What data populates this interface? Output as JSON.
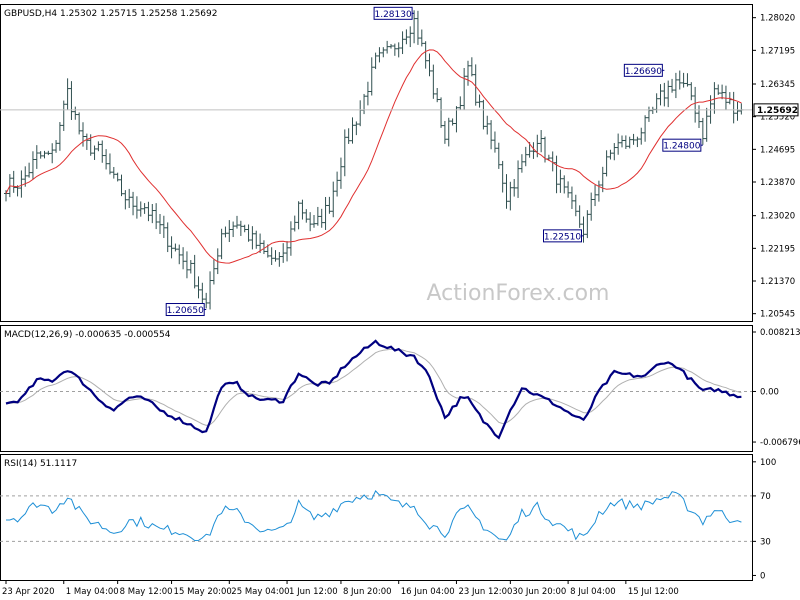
{
  "chart_data": [
    {
      "type": "bar",
      "panel": "price",
      "header": "GBPUSD,H4  1.25302 1.25715 1.25258 1.25692",
      "watermark": "ActionForex.com",
      "ylim": [
        1.2036,
        1.2834
      ],
      "yticks": [
        "1.28020",
        "1.27195",
        "1.26345",
        "1.25520",
        "1.24695",
        "1.23870",
        "1.23020",
        "1.22195",
        "1.21370",
        "1.20545"
      ],
      "yticks_values": [
        1.2802,
        1.27195,
        1.26345,
        1.2552,
        1.24695,
        1.2387,
        1.2302,
        1.22195,
        1.2137,
        1.20545
      ],
      "current_price": "1.25692",
      "current_price_value": 1.25692,
      "annotations": [
        {
          "text": "1.28130",
          "value": 1.2813,
          "bar": 106,
          "side": "left"
        },
        {
          "text": "1.26690",
          "value": 1.2669,
          "bar": 171,
          "side": "left"
        },
        {
          "text": "1.24800",
          "value": 1.248,
          "bar": 181,
          "side": "left"
        },
        {
          "text": "1.22510",
          "value": 1.2251,
          "bar": 150,
          "side": "left"
        },
        {
          "text": "1.20650",
          "value": 1.2065,
          "bar": 52,
          "side": "left"
        }
      ],
      "ma_color": "#e03030",
      "bar_color": "#2f4f4f",
      "anchors": [
        [
          0,
          1.2378
        ],
        [
          4,
          1.2385
        ],
        [
          8,
          1.245
        ],
        [
          12,
          1.2455
        ],
        [
          16,
          1.2615
        ],
        [
          20,
          1.2485
        ],
        [
          24,
          1.2465
        ],
        [
          28,
          1.239
        ],
        [
          32,
          1.2335
        ],
        [
          36,
          1.2325
        ],
        [
          40,
          1.227
        ],
        [
          44,
          1.2215
        ],
        [
          48,
          1.2165
        ],
        [
          52,
          1.2075
        ],
        [
          56,
          1.226
        ],
        [
          60,
          1.2285
        ],
        [
          64,
          1.224
        ],
        [
          68,
          1.2195
        ],
        [
          72,
          1.219
        ],
        [
          76,
          1.233
        ],
        [
          80,
          1.227
        ],
        [
          84,
          1.233
        ],
        [
          88,
          1.248
        ],
        [
          92,
          1.257
        ],
        [
          96,
          1.269
        ],
        [
          100,
          1.272
        ],
        [
          104,
          1.277
        ],
        [
          106,
          1.2795
        ],
        [
          110,
          1.266
        ],
        [
          114,
          1.25
        ],
        [
          118,
          1.26
        ],
        [
          120,
          1.2675
        ],
        [
          124,
          1.254
        ],
        [
          128,
          1.244
        ],
        [
          130,
          1.235
        ],
        [
          134,
          1.243
        ],
        [
          138,
          1.25
        ],
        [
          142,
          1.242
        ],
        [
          146,
          1.234
        ],
        [
          150,
          1.2265
        ],
        [
          154,
          1.239
        ],
        [
          158,
          1.248
        ],
        [
          162,
          1.2485
        ],
        [
          166,
          1.253
        ],
        [
          170,
          1.26
        ],
        [
          174,
          1.2645
        ],
        [
          178,
          1.2605
        ],
        [
          181,
          1.251
        ],
        [
          184,
          1.262
        ],
        [
          188,
          1.2585
        ],
        [
          191,
          1.2569
        ]
      ]
    },
    {
      "type": "line",
      "panel": "macd",
      "header": "MACD(12,26,9) -0.000635 -0.000554",
      "ylim": [
        -0.008,
        0.0088
      ],
      "yticks": [
        "0.008213",
        "0.00",
        "-0.006796"
      ],
      "yticks_values": [
        0.008213,
        0.0,
        -0.006796
      ],
      "series": [
        {
          "color": "#000080"
        },
        {
          "color": "#b0b0b0"
        }
      ],
      "anchors": [
        [
          0,
          -0.0017
        ],
        [
          4,
          -0.001
        ],
        [
          8,
          0.0015
        ],
        [
          12,
          0.0015
        ],
        [
          16,
          0.003
        ],
        [
          20,
          0.0012
        ],
        [
          24,
          -0.001
        ],
        [
          28,
          -0.0025
        ],
        [
          32,
          -0.0008
        ],
        [
          36,
          -0.001
        ],
        [
          40,
          -0.0025
        ],
        [
          44,
          -0.0035
        ],
        [
          48,
          -0.0045
        ],
        [
          52,
          -0.0055
        ],
        [
          56,
          0.0008
        ],
        [
          60,
          0.001
        ],
        [
          64,
          -0.0008
        ],
        [
          68,
          -0.0012
        ],
        [
          72,
          -0.0012
        ],
        [
          76,
          0.0025
        ],
        [
          80,
          0.001
        ],
        [
          84,
          0.001
        ],
        [
          88,
          0.0035
        ],
        [
          92,
          0.0052
        ],
        [
          96,
          0.0067
        ],
        [
          100,
          0.0058
        ],
        [
          104,
          0.005
        ],
        [
          106,
          0.0048
        ],
        [
          110,
          0.002
        ],
        [
          114,
          -0.0035
        ],
        [
          118,
          -0.001
        ],
        [
          120,
          -0.001
        ],
        [
          124,
          -0.004
        ],
        [
          128,
          -0.006
        ],
        [
          130,
          -0.0035
        ],
        [
          134,
          0.0005
        ],
        [
          138,
          -0.0005
        ],
        [
          142,
          -0.0015
        ],
        [
          146,
          -0.0028
        ],
        [
          150,
          -0.004
        ],
        [
          154,
          0.0
        ],
        [
          158,
          0.0025
        ],
        [
          162,
          0.0022
        ],
        [
          166,
          0.002
        ],
        [
          170,
          0.004
        ],
        [
          174,
          0.0035
        ],
        [
          178,
          0.0015
        ],
        [
          181,
          0.0
        ],
        [
          184,
          0.0003
        ],
        [
          188,
          -0.0003
        ],
        [
          191,
          -0.0006
        ]
      ]
    },
    {
      "type": "line",
      "panel": "rsi",
      "header": "RSI(14) 51.1117",
      "ylim": [
        0,
        100
      ],
      "yticks": [
        "100",
        "70",
        "30",
        "0"
      ],
      "yticks_values": [
        100,
        70,
        30,
        0
      ],
      "series": [
        {
          "color": "#1e8fd6"
        }
      ],
      "anchors": [
        [
          0,
          50
        ],
        [
          4,
          52
        ],
        [
          8,
          64
        ],
        [
          12,
          58
        ],
        [
          16,
          70
        ],
        [
          20,
          52
        ],
        [
          24,
          45
        ],
        [
          28,
          38
        ],
        [
          32,
          48
        ],
        [
          36,
          47
        ],
        [
          40,
          40
        ],
        [
          44,
          40
        ],
        [
          48,
          36
        ],
        [
          52,
          32
        ],
        [
          56,
          58
        ],
        [
          60,
          55
        ],
        [
          64,
          45
        ],
        [
          68,
          38
        ],
        [
          72,
          40
        ],
        [
          76,
          62
        ],
        [
          80,
          50
        ],
        [
          84,
          56
        ],
        [
          88,
          65
        ],
        [
          92,
          70
        ],
        [
          96,
          72
        ],
        [
          100,
          65
        ],
        [
          104,
          60
        ],
        [
          106,
          62
        ],
        [
          110,
          45
        ],
        [
          114,
          38
        ],
        [
          118,
          55
        ],
        [
          120,
          58
        ],
        [
          124,
          44
        ],
        [
          128,
          32
        ],
        [
          130,
          30
        ],
        [
          134,
          55
        ],
        [
          138,
          60
        ],
        [
          142,
          48
        ],
        [
          146,
          40
        ],
        [
          150,
          32
        ],
        [
          154,
          55
        ],
        [
          158,
          65
        ],
        [
          162,
          62
        ],
        [
          166,
          62
        ],
        [
          170,
          68
        ],
        [
          174,
          70
        ],
        [
          178,
          58
        ],
        [
          181,
          48
        ],
        [
          184,
          58
        ],
        [
          188,
          50
        ],
        [
          191,
          51
        ]
      ]
    }
  ],
  "x_labels": [
    {
      "text": "23 Apr 2020",
      "bar": 0
    },
    {
      "text": "1 May 04:00",
      "bar": 15
    },
    {
      "text": "8 May 12:00",
      "bar": 29
    },
    {
      "text": "15 May 20:00",
      "bar": 43
    },
    {
      "text": "25 May 04:00",
      "bar": 58
    },
    {
      "text": "1 Jun 12:00",
      "bar": 73
    },
    {
      "text": "8 Jun 20:00",
      "bar": 87
    },
    {
      "text": "16 Jun 04:00",
      "bar": 102
    },
    {
      "text": "23 Jun 12:00",
      "bar": 117
    },
    {
      "text": "30 Jun 20:00",
      "bar": 131
    },
    {
      "text": "8 Jul 04:00",
      "bar": 146
    },
    {
      "text": "15 Jul 12:00",
      "bar": 161
    }
  ]
}
